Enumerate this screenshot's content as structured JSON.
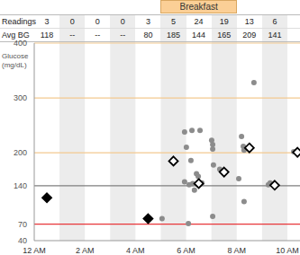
{
  "chart_data": {
    "type": "scatter",
    "y_label": "Glucose\n(mg/dL)",
    "xlim": [
      0,
      10.5
    ],
    "xticks": [
      {
        "value": 0,
        "label": "12 AM"
      },
      {
        "value": 2,
        "label": "2 AM"
      },
      {
        "value": 4,
        "label": "4 AM"
      },
      {
        "value": 6,
        "label": "6 AM"
      },
      {
        "value": 8,
        "label": "8 AM"
      },
      {
        "value": 10,
        "label": "10 AM"
      }
    ],
    "ylim": [
      40,
      400
    ],
    "yticks": [
      40,
      70,
      140,
      200,
      300,
      400
    ],
    "reference_lines": [
      {
        "y": 70,
        "color": "#e8363a"
      },
      {
        "y": 140,
        "color": "#7f7f7f"
      },
      {
        "y": 200,
        "color": "#f3c98f"
      },
      {
        "y": 300,
        "color": "#f3c98f"
      },
      {
        "y": 400,
        "color": "#f3c98f"
      }
    ],
    "series": [
      {
        "type": "scatter",
        "marker": "circle",
        "color": "#8c8c8c",
        "x": [
          5.05,
          5.94,
          6.23,
          6.55,
          6.01,
          6.19,
          6.41,
          6.48,
          5.94,
          6.12,
          6.26,
          6.33,
          6.09,
          7.01,
          7.05,
          7.05,
          7.08,
          7.05,
          6.62,
          7.33,
          8.19,
          8.26,
          8.29,
          8.08,
          8.29,
          8.68,
          9.25,
          9.32,
          10.25,
          10.39
        ],
        "values": [
          80,
          238,
          241,
          241,
          210,
          186,
          162,
          157,
          147,
          142,
          144,
          132,
          71,
          223,
          215,
          207,
          178,
          84,
          145,
          170,
          230,
          212,
          205,
          153,
          111,
          328,
          142,
          145,
          202,
          199
        ]
      },
      {
        "type": "scatter",
        "marker": "diamond",
        "color": "#000000",
        "colors": [
          "#000000",
          "#000000",
          "#ffffff",
          "#ffffff",
          "#ffffff",
          "#ffffff",
          "#ffffff",
          "#ffffff"
        ],
        "x": [
          0.5,
          4.5,
          5.5,
          6.5,
          7.5,
          8.5,
          9.5,
          10.4
        ],
        "values": [
          118,
          80,
          185,
          144,
          165,
          209,
          141,
          201
        ]
      }
    ],
    "annotations": [
      {
        "text": "Breakfast",
        "x_start": 5,
        "x_end": 8,
        "color": "#fbcf96"
      }
    ],
    "summary_rows": [
      {
        "label": "Readings",
        "values": [
          "3",
          "0",
          "0",
          "0",
          "3",
          "5",
          "24",
          "19",
          "13",
          "6"
        ]
      },
      {
        "label": "Avg BG",
        "values": [
          "118",
          "--",
          "--",
          "--",
          "80",
          "185",
          "144",
          "165",
          "209",
          "141"
        ]
      }
    ]
  }
}
